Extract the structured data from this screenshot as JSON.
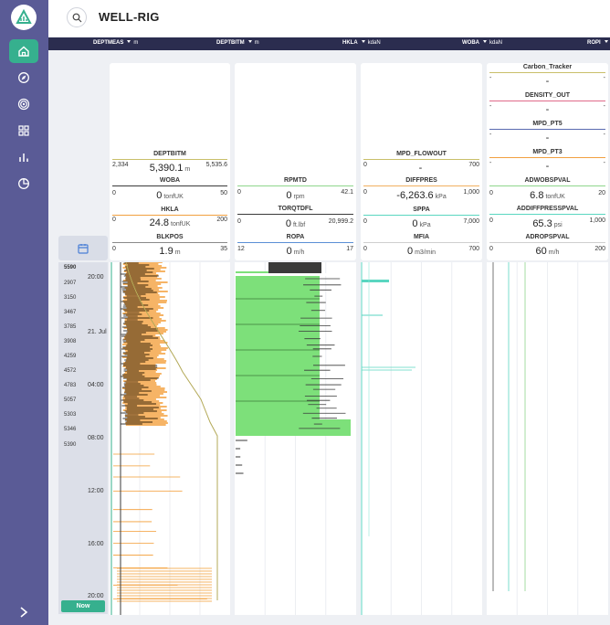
{
  "topbar": {
    "title": "WELL-RIG"
  },
  "header": {
    "columns": [
      {
        "label": "DEPTMEAS",
        "unit": "m"
      },
      {
        "label": "DEPTBITM",
        "unit": "m"
      },
      {
        "label": "HKLA",
        "unit": "kdaN"
      },
      {
        "label": "WOBA",
        "unit": "kdaN"
      },
      {
        "label": "ROPI",
        "unit": ""
      }
    ]
  },
  "track1": {
    "channels": [
      {
        "name": "DEPTBITM",
        "min": "2,334",
        "value": "5,390.1",
        "unit": "m",
        "max": "5,535.6",
        "color": "#c9bf6a"
      },
      {
        "name": "WOBA",
        "min": "0",
        "value": "0",
        "unit": "tonfUK",
        "max": "50",
        "color": "#3a3a3a"
      },
      {
        "name": "HKLA",
        "min": "0",
        "value": "24.8",
        "unit": "tonfUK",
        "max": "200",
        "color": "#f1a040"
      },
      {
        "name": "BLKPOS",
        "min": "0",
        "value": "1.9",
        "unit": "m",
        "max": "35",
        "color": "#8a8a8a"
      }
    ]
  },
  "track2": {
    "channels": [
      {
        "name": "RPMTD",
        "min": "0",
        "value": "0",
        "unit": "rpm",
        "max": "42.1",
        "color": "#8fd68c"
      },
      {
        "name": "TORQTDFL",
        "min": "0",
        "value": "0",
        "unit": "ft.lbf",
        "max": "20,999.2",
        "color": "#3a3a3a"
      },
      {
        "name": "ROPA",
        "min": "12",
        "value": "0",
        "unit": "m/h",
        "max": "17",
        "color": "#5a8fd6"
      }
    ]
  },
  "track3": {
    "channels": [
      {
        "name": "MPD_FLOWOUT",
        "min": "0",
        "value": "-",
        "unit": "",
        "max": "700",
        "color": "#c9bf6a"
      },
      {
        "name": "DIFFPRES",
        "min": "0",
        "value": "-6,263.6",
        "unit": "kPa",
        "max": "1,000",
        "color": "#f1b060"
      },
      {
        "name": "SPPA",
        "min": "0",
        "value": "0",
        "unit": "kPa",
        "max": "7,000",
        "color": "#5ad6c0"
      },
      {
        "name": "MFIA",
        "min": "0",
        "value": "0",
        "unit": "m3/min",
        "max": "700",
        "color": "#cfcfcf"
      }
    ]
  },
  "track4": {
    "channels": [
      {
        "name": "Carbon_Tracker",
        "min": "-",
        "value": "-",
        "unit": "",
        "max": "-",
        "color": "#c9bf6a"
      },
      {
        "name": "DENSITY_OUT",
        "min": "-",
        "value": "-",
        "unit": "",
        "max": "-",
        "color": "#e06a8a"
      },
      {
        "name": "MPD_PT5",
        "min": "-",
        "value": "-",
        "unit": "",
        "max": "-",
        "color": "#5a6ab0"
      },
      {
        "name": "MPD_PT3",
        "min": "-",
        "value": "-",
        "unit": "",
        "max": "-",
        "color": "#f1a040"
      },
      {
        "name": "ADWOBSPVAL",
        "min": "0",
        "value": "6.8",
        "unit": "tonfUK",
        "max": "20",
        "color": "#8fd68c"
      },
      {
        "name": "ADDIFFPRESSPVAL",
        "min": "0",
        "value": "65.3",
        "unit": "psi",
        "max": "1,000",
        "color": "#5ad6c0"
      },
      {
        "name": "ADROPSPVAL",
        "min": "0",
        "value": "60",
        "unit": "m/h",
        "max": "200",
        "color": "#cfcfcf"
      }
    ]
  },
  "timeline": {
    "depths": [
      "5590",
      "2907",
      "3150",
      "3467",
      "3785",
      "3908",
      "4259",
      "4572",
      "4783",
      "5057",
      "5303",
      "5346",
      "5390"
    ],
    "times": [
      "20:00",
      "21. Jul",
      "04:00",
      "08:00",
      "12:00",
      "16:00",
      "20:00"
    ],
    "now_label": "Now"
  },
  "colors": {
    "sidebar": "#5a5b96",
    "accent": "#36b08e",
    "header": "#2b2d4f",
    "hkla": "#f39c33",
    "woba": "#3a3a3a",
    "rpm": "#7de07a"
  }
}
